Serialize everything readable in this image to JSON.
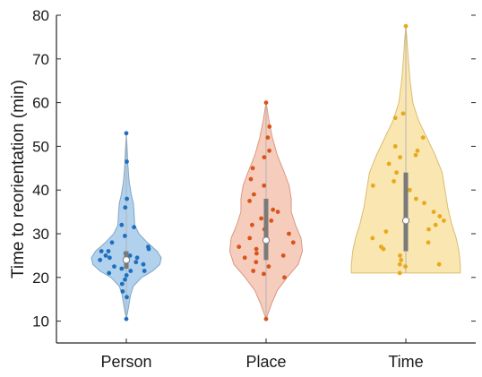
{
  "chart_data": {
    "type": "violin",
    "title": "",
    "xlabel": "",
    "ylabel": "Time to reorientation (min)",
    "categories": [
      "Person",
      "Place",
      "Time"
    ],
    "ylim": [
      5,
      80
    ],
    "yticks": [
      10,
      20,
      30,
      40,
      50,
      60,
      70,
      80
    ],
    "grid": false,
    "legend": "none",
    "series": [
      {
        "category": "Person",
        "color_fill": "#a9cceb",
        "color_edge": "#7fa6c8",
        "color_points": "#1f6fbf",
        "median": 24,
        "q1": 22,
        "q3": 26,
        "min": 10.5,
        "max": 53,
        "density": [
          [
            10.5,
            0.0
          ],
          [
            13,
            0.03
          ],
          [
            16,
            0.06
          ],
          [
            18,
            0.1
          ],
          [
            20,
            0.22
          ],
          [
            21.5,
            0.38
          ],
          [
            23,
            0.48
          ],
          [
            24.5,
            0.5
          ],
          [
            26,
            0.44
          ],
          [
            28,
            0.3
          ],
          [
            30,
            0.18
          ],
          [
            32,
            0.12
          ],
          [
            35,
            0.11
          ],
          [
            37,
            0.1
          ],
          [
            39,
            0.07
          ],
          [
            42,
            0.04
          ],
          [
            46,
            0.02
          ],
          [
            50,
            0.01
          ],
          [
            53,
            0.0
          ]
        ],
        "points": [
          10.5,
          15.5,
          16.8,
          18.5,
          19.5,
          20.5,
          21,
          21.5,
          21.5,
          22,
          22.5,
          23,
          23.5,
          24,
          24,
          24.5,
          24.5,
          25,
          25,
          25.5,
          26,
          26,
          26.5,
          27,
          28,
          29.5,
          31.5,
          32,
          36,
          38,
          46.5,
          53
        ]
      },
      {
        "category": "Place",
        "color_fill": "#f5c7b5",
        "color_edge": "#d99a82",
        "color_points": "#d9541a",
        "median": 28.5,
        "q1": 24,
        "q3": 38,
        "min": 10.5,
        "max": 60,
        "density": [
          [
            10.5,
            0.0
          ],
          [
            14,
            0.08
          ],
          [
            17,
            0.16
          ],
          [
            20,
            0.3
          ],
          [
            23,
            0.46
          ],
          [
            26,
            0.52
          ],
          [
            29,
            0.5
          ],
          [
            32,
            0.42
          ],
          [
            35,
            0.36
          ],
          [
            38,
            0.36
          ],
          [
            41,
            0.33
          ],
          [
            44,
            0.26
          ],
          [
            48,
            0.16
          ],
          [
            52,
            0.09
          ],
          [
            56,
            0.04
          ],
          [
            60,
            0.0
          ]
        ],
        "points": [
          10.5,
          20,
          20.8,
          21.5,
          22.5,
          23.5,
          24.5,
          25,
          25.5,
          26.5,
          27,
          28,
          29,
          30,
          31,
          32,
          33,
          33.5,
          35,
          35.5,
          37.5,
          39,
          41,
          42.5,
          45,
          47.5,
          49,
          52,
          54.5,
          60
        ]
      },
      {
        "category": "Time",
        "color_fill": "#fae3a8",
        "color_edge": "#dbbd6f",
        "color_points": "#e8a91b",
        "median": 33,
        "q1": 26,
        "q3": 44,
        "min": 21,
        "max": 77.5,
        "density": [
          [
            21,
            0.78
          ],
          [
            23,
            0.78
          ],
          [
            26,
            0.76
          ],
          [
            29,
            0.72
          ],
          [
            32,
            0.66
          ],
          [
            36,
            0.6
          ],
          [
            40,
            0.56
          ],
          [
            44,
            0.52
          ],
          [
            48,
            0.42
          ],
          [
            52,
            0.3
          ],
          [
            56,
            0.18
          ],
          [
            60,
            0.1
          ],
          [
            65,
            0.06
          ],
          [
            70,
            0.035
          ],
          [
            74,
            0.018
          ],
          [
            77.5,
            0.0
          ]
        ],
        "points": [
          21,
          22.5,
          23,
          23,
          24,
          25,
          26.5,
          27,
          28,
          29,
          30.5,
          31,
          32,
          33,
          34,
          35,
          37,
          38,
          40,
          41,
          42,
          44,
          46,
          47.5,
          48,
          49,
          50,
          52,
          56.5,
          57.5,
          77.5
        ]
      }
    ]
  }
}
